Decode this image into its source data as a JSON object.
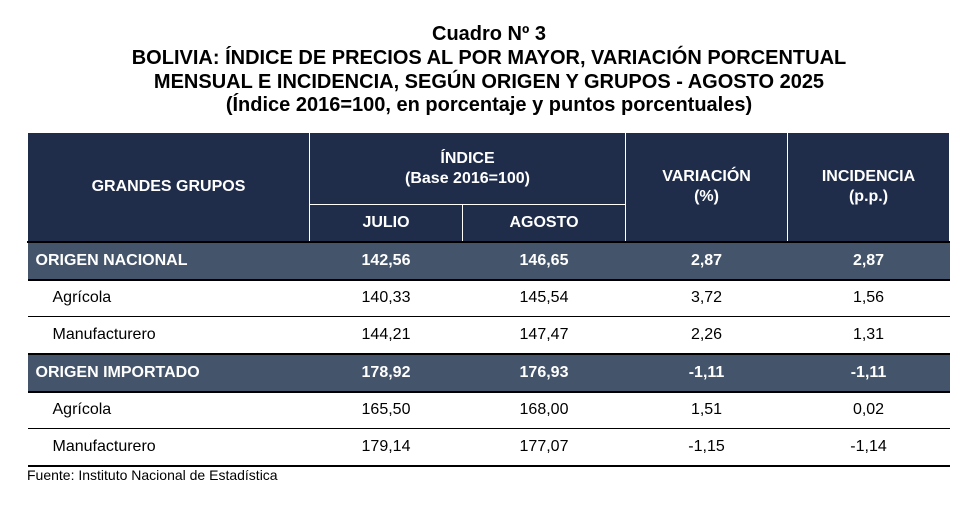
{
  "title": {
    "line1": "Cuadro Nº 3",
    "line2": "BOLIVIA: ÍNDICE DE PRECIOS AL POR MAYOR, VARIACIÓN PORCENTUAL",
    "line3": "MENSUAL E INCIDENCIA, SEGÚN ORIGEN Y GRUPOS - AGOSTO 2025",
    "line4": "(Índice 2016=100, en porcentaje y puntos porcentuales)"
  },
  "table": {
    "headers": {
      "grupos": "GRANDES GRUPOS",
      "indice": "ÍNDICE",
      "indice_base": "(Base 2016=100)",
      "julio": "JULIO",
      "agosto": "AGOSTO",
      "variacion": "VARIACIÓN",
      "variacion_unit": "(%)",
      "incidencia": "INCIDENCIA",
      "incidencia_unit": "(p.p.)"
    },
    "rows": [
      {
        "label": "ORIGEN NACIONAL",
        "julio": "142,56",
        "agosto": "146,65",
        "variacion": "2,87",
        "incidencia": "2,87"
      },
      {
        "label": "Agrícola",
        "julio": "140,33",
        "agosto": "145,54",
        "variacion": "3,72",
        "incidencia": "1,56"
      },
      {
        "label": "Manufacturero",
        "julio": "144,21",
        "agosto": "147,47",
        "variacion": "2,26",
        "incidencia": "1,31"
      },
      {
        "label": "ORIGEN IMPORTADO",
        "julio": "178,92",
        "agosto": "176,93",
        "variacion": "-1,11",
        "incidencia": "-1,11"
      },
      {
        "label": "Agrícola",
        "julio": "165,50",
        "agosto": "168,00",
        "variacion": "1,51",
        "incidencia": "0,02"
      },
      {
        "label": "Manufacturero",
        "julio": "179,14",
        "agosto": "177,07",
        "variacion": "-1,15",
        "incidencia": "-1,14"
      }
    ]
  },
  "source": "Fuente: Instituto Nacional de Estadística",
  "colors": {
    "header_bg": "#1f2d4b",
    "group_bg": "#44546a",
    "header_text": "#ffffff"
  }
}
